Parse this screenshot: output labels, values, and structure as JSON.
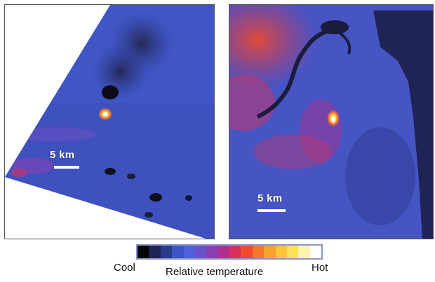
{
  "panels": {
    "left": {
      "scale_label": "5 km"
    },
    "right": {
      "scale_label": "5 km"
    }
  },
  "legend": {
    "cool_label": "Cool",
    "title": "Relative temperature",
    "hot_label": "Hot",
    "colors": [
      "#050505",
      "#1f2455",
      "#2c3a8c",
      "#3b55c6",
      "#5060da",
      "#6a52c9",
      "#8a3fb4",
      "#b02f8e",
      "#d9305a",
      "#f04a2a",
      "#f7762a",
      "#f9a22c",
      "#fbc43a",
      "#fde05a",
      "#fef3b0",
      "#ffffff"
    ]
  }
}
